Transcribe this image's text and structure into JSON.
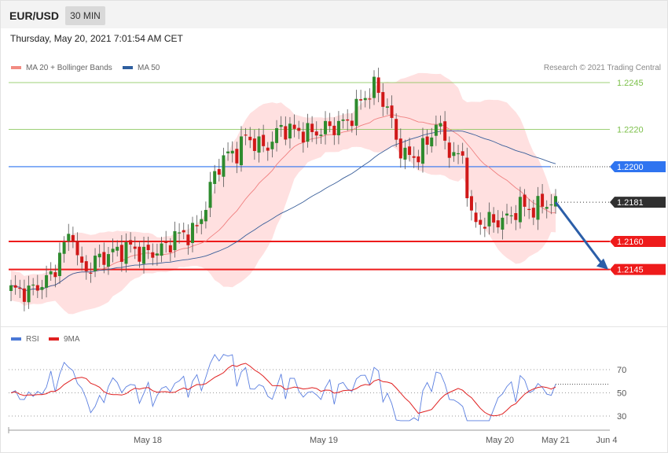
{
  "header": {
    "symbol": "EUR/USD",
    "timeframe": "30 MIN",
    "datetime": "Thursday, May 20, 2021 7:01:54 AM CET"
  },
  "legend": {
    "items": [
      {
        "label": "MA 20 + Bollinger Bands",
        "color": "#f28b82"
      },
      {
        "label": "MA 50",
        "color": "#2f5f9f"
      }
    ],
    "credit": "Research © 2021 Trading Central"
  },
  "rsi_legend": {
    "items": [
      {
        "label": "RSI",
        "color": "#4a78d6"
      },
      {
        "label": "9MA",
        "color": "#e02020"
      }
    ]
  },
  "colors": {
    "bull": "#2e8b2e",
    "bear": "#d01818",
    "band_fill": "#ffd6d6",
    "resistance": "#7cc04a",
    "pivot": "#2f74f0",
    "support": "#ee1b1b",
    "last": "#303030",
    "arrow": "#2b5ea8"
  },
  "chart_data": [
    {
      "type": "candlestick",
      "title": "",
      "x_axis_ticks": [
        "May 18",
        "May 19",
        "May 20",
        "May 21",
        "Jun 4"
      ],
      "y_range": [
        1.2117,
        1.2257
      ],
      "price_levels": [
        {
          "label": "1.2245",
          "value": 1.2245,
          "kind": "resistance"
        },
        {
          "label": "1.2220",
          "value": 1.222,
          "kind": "resistance"
        },
        {
          "label": "1.2200",
          "value": 1.22,
          "kind": "pivot"
        },
        {
          "label": "1.2181",
          "value": 1.2181,
          "kind": "last"
        },
        {
          "label": "1.2160",
          "value": 1.216,
          "kind": "support"
        },
        {
          "label": "1.2145",
          "value": 1.2145,
          "kind": "support"
        }
      ],
      "projection": {
        "from": 1.2181,
        "to": 1.2145
      },
      "series": [
        {
          "name": "MA 20 + Bollinger Bands"
        },
        {
          "name": "MA 50"
        }
      ]
    },
    {
      "type": "line",
      "title": "",
      "ylim": [
        20,
        100
      ],
      "y_ticks": [
        "70",
        "50",
        "30"
      ],
      "series": [
        {
          "name": "RSI"
        },
        {
          "name": "9MA"
        }
      ]
    }
  ]
}
